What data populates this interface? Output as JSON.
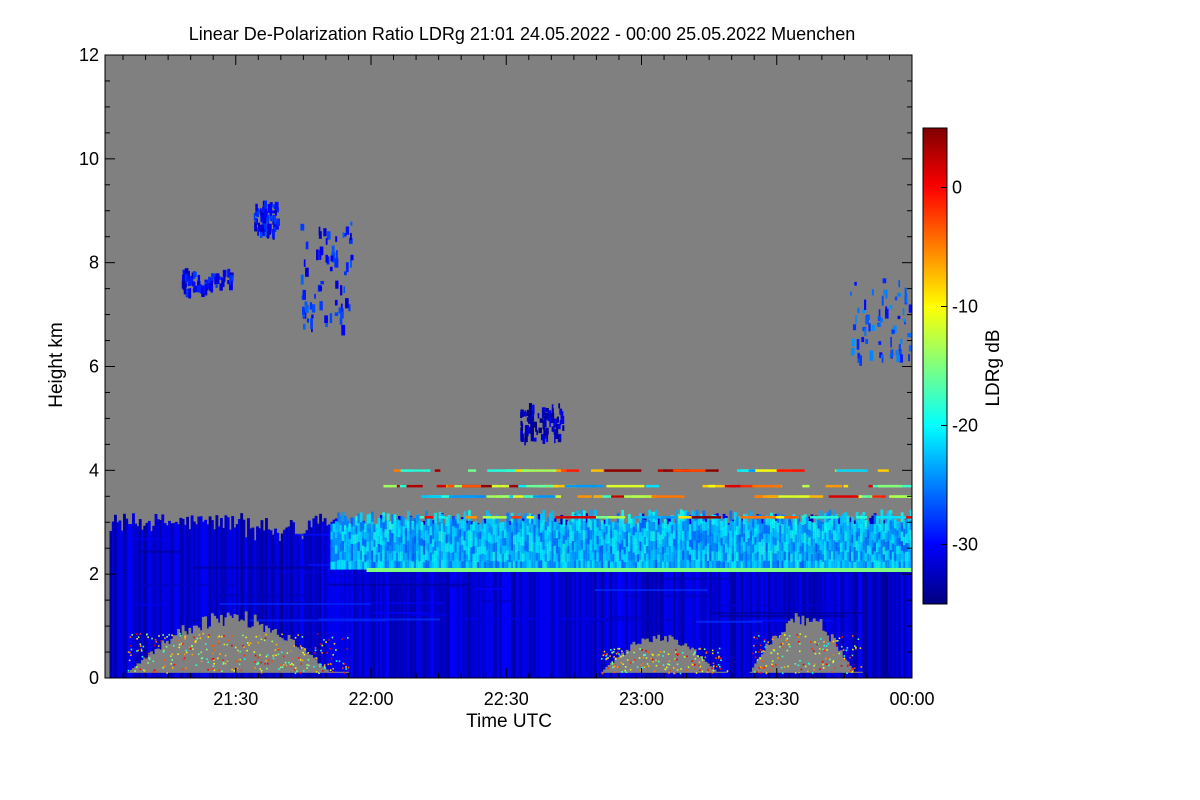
{
  "chart_data": {
    "type": "heatmap",
    "title": "Linear De-Polarization Ratio LDRg   21:01 24.05.2022 - 00:00 25.05.2022 Muenchen",
    "xlabel": "Time UTC",
    "ylabel": "Height km",
    "x_range": [
      "21:01",
      "00:00"
    ],
    "x_ticks": [
      "21:30",
      "22:00",
      "22:30",
      "23:00",
      "23:30",
      "00:00"
    ],
    "x_tick_minutes": [
      29,
      59,
      89,
      119,
      149,
      179
    ],
    "x_minor_step_minutes": 5,
    "x_total_minutes": 179,
    "ylim": [
      0,
      12
    ],
    "y_ticks": [
      0,
      2,
      4,
      6,
      8,
      10,
      12
    ],
    "y_minor_step": 0.5,
    "background_color": "#808080",
    "colorbar": {
      "label": "LDRg dB",
      "range": [
        -35,
        5
      ],
      "ticks": [
        0,
        -10,
        -20,
        -30
      ],
      "colormap": "jet",
      "colors": [
        "#00007f",
        "#0000ff",
        "#007fff",
        "#00ffff",
        "#7fff7f",
        "#ffff00",
        "#ff7f00",
        "#ff0000",
        "#7f0000"
      ]
    },
    "features": {
      "boundary_layer_deep_blue": {
        "t_start": 1,
        "t_end": 179,
        "h_bottom": 0.0,
        "h_top": 3.0,
        "ldr_db": -32
      },
      "elevated_aerosol_layer": {
        "t_start": 50,
        "t_end": 179,
        "h_bottom": 2.1,
        "h_top": 3.1,
        "ldr_db": -23
      },
      "bright_thin_line": {
        "t_start": 58,
        "t_end": 179,
        "height": 2.08,
        "ldr_db": -15
      },
      "near_surface_clear_gaps": [
        {
          "t_start": 5,
          "t_end": 54,
          "h_top": 1.1
        },
        {
          "t_start": 110,
          "t_end": 138,
          "h_top": 0.7
        },
        {
          "t_start": 143,
          "t_end": 168,
          "h_top": 1.1
        }
      ],
      "cirrus_patches": [
        {
          "t_start": 17,
          "t_end": 28,
          "h_bottom": 7.5,
          "h_top": 7.9,
          "ldr_db": -30
        },
        {
          "t_start": 43,
          "t_end": 55,
          "h_bottom": 6.8,
          "h_top": 8.8,
          "ldr_db": -29
        },
        {
          "t_start": 33,
          "t_end": 38,
          "h_bottom": 8.6,
          "h_top": 9.2,
          "ldr_db": -30
        },
        {
          "t_start": 92,
          "t_end": 102,
          "h_bottom": 4.6,
          "h_top": 5.3,
          "ldr_db": -33
        },
        {
          "t_start": 165,
          "t_end": 179,
          "h_bottom": 6.2,
          "h_top": 7.7,
          "ldr_db": -27
        }
      ],
      "speckle_layer_heights_km": [
        3.1,
        3.5,
        3.7,
        4.0
      ]
    }
  }
}
